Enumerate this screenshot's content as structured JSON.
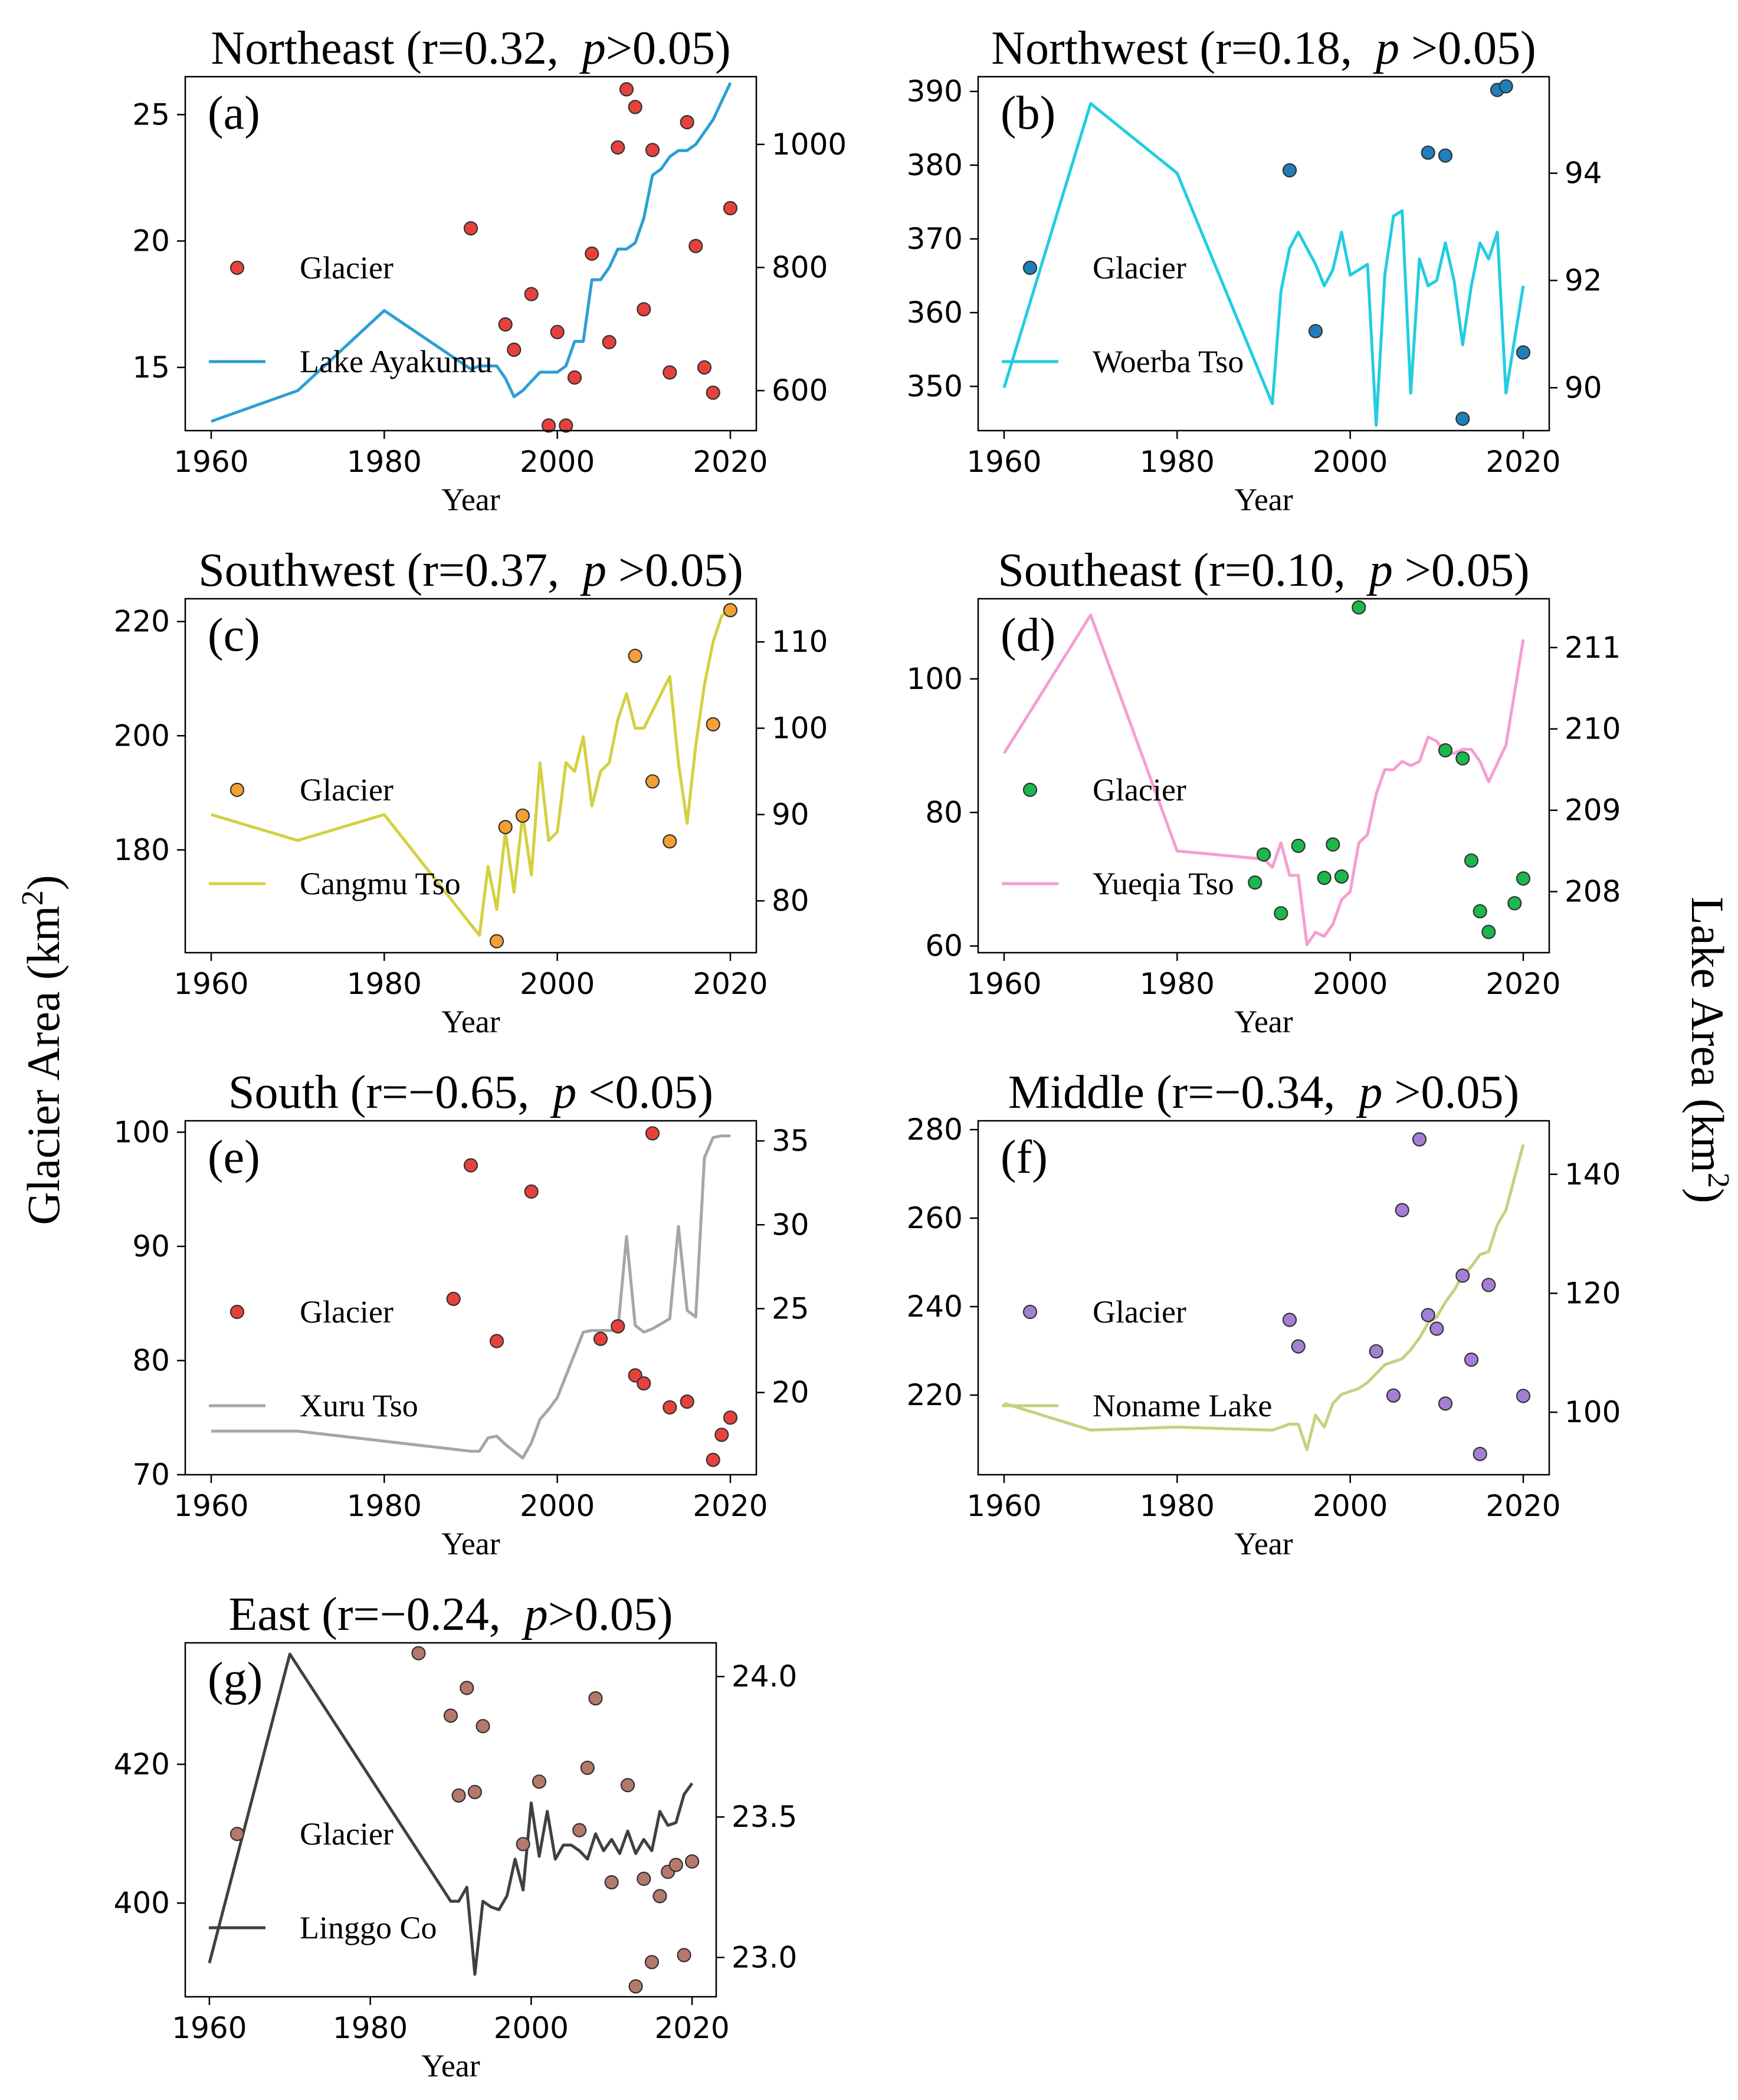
{
  "figure": {
    "left_axis_label": "Glacier Area (km²)",
    "right_axis_label": "Lake Area (km²)"
  },
  "chart_data": [
    {
      "type": "scatter+line",
      "panel_label": "(a)",
      "title": "Northeast (r=0.32, p>0.05)",
      "title_parts": {
        "prefix": "Northeast (r=0.32,  ",
        "p": "p",
        "suffix": ">0.05)"
      },
      "xlabel": "Year",
      "xlim": [
        1957,
        2023
      ],
      "xticks": [
        1960,
        1980,
        2000,
        2020
      ],
      "glacier": {
        "name": "Glacier",
        "color": "#e8413c",
        "ylim": [
          12.5,
          26.5
        ],
        "yticks": [
          15,
          20,
          25
        ],
        "x": [
          1990,
          1994,
          1995,
          1997,
          1999,
          2000,
          2001,
          2002,
          2004,
          2006,
          2007,
          2008,
          2009,
          2010,
          2011,
          2013,
          2015,
          2016,
          2017,
          2018,
          2020
        ],
        "y": [
          20.5,
          16.7,
          15.7,
          17.9,
          12.7,
          16.4,
          12.7,
          14.6,
          19.5,
          16.0,
          23.7,
          26.0,
          25.3,
          17.3,
          23.6,
          14.8,
          24.7,
          19.8,
          15.0,
          14.0,
          21.3
        ]
      },
      "lake": {
        "name": "Lake Ayakumu",
        "color": "#2b9fd4",
        "ylim": [
          535,
          1110
        ],
        "yticks": [
          600,
          800,
          1000
        ],
        "x": [
          1960,
          1970,
          1980,
          1990,
          1991,
          1993,
          1994,
          1995,
          1996,
          1998,
          1999,
          2000,
          2001,
          2002,
          2003,
          2004,
          2005,
          2006,
          2007,
          2008,
          2009,
          2010,
          2011,
          2012,
          2013,
          2014,
          2015,
          2016,
          2017,
          2018,
          2019,
          2020
        ],
        "y": [
          550,
          600,
          730,
          635,
          640,
          640,
          620,
          590,
          600,
          630,
          630,
          630,
          640,
          680,
          680,
          780,
          780,
          800,
          830,
          830,
          840,
          880,
          950,
          960,
          980,
          990,
          990,
          1000,
          1020,
          1040,
          1070,
          1100
        ]
      }
    },
    {
      "type": "scatter+line",
      "panel_label": "(b)",
      "title": "Northwest (r=0.18, p >0.05)",
      "title_parts": {
        "prefix": "Northwest (r=0.18,  ",
        "p": "p",
        "suffix": " >0.05)"
      },
      "xlabel": "Year",
      "xlim": [
        1957,
        2023
      ],
      "xticks": [
        1960,
        1980,
        2000,
        2020
      ],
      "glacier": {
        "name": "Glacier",
        "color": "#1f7fb8",
        "ylim": [
          344,
          392
        ],
        "yticks": [
          350,
          360,
          370,
          380,
          390
        ],
        "x": [
          1993,
          1996,
          2009,
          2011,
          2013,
          2017,
          2018,
          2020
        ],
        "y": [
          379.3,
          357.5,
          381.7,
          381.3,
          345.6,
          390.2,
          390.7,
          354.6
        ]
      },
      "lake": {
        "name": "Woerba Tso",
        "color": "#22cde0",
        "ylim": [
          89.2,
          95.8
        ],
        "yticks": [
          90,
          92,
          94
        ],
        "x": [
          1960,
          1970,
          1980,
          1991,
          1992,
          1993,
          1994,
          1995,
          1996,
          1997,
          1998,
          1999,
          2000,
          2001,
          2002,
          2003,
          2004,
          2005,
          2006,
          2007,
          2008,
          2009,
          2010,
          2011,
          2012,
          2013,
          2014,
          2015,
          2016,
          2017,
          2018,
          2019,
          2020
        ],
        "y": [
          90.0,
          95.3,
          94.0,
          89.7,
          91.8,
          92.6,
          92.9,
          92.6,
          92.3,
          91.9,
          92.2,
          92.9,
          92.1,
          92.2,
          92.3,
          89.3,
          92.1,
          93.2,
          93.3,
          89.9,
          92.4,
          91.9,
          92.0,
          92.7,
          92.0,
          90.8,
          91.9,
          92.7,
          92.4,
          92.9,
          89.9,
          90.9,
          91.9
        ]
      }
    },
    {
      "type": "scatter+line",
      "panel_label": "(c)",
      "title": "Southwest (r=0.37, p >0.05)",
      "title_parts": {
        "prefix": "Southwest (r=0.37,  ",
        "p": "p",
        "suffix": " >0.05)"
      },
      "xlabel": "Year",
      "xlim": [
        1957,
        2023
      ],
      "xticks": [
        1960,
        1980,
        2000,
        2020
      ],
      "glacier": {
        "name": "Glacier",
        "color": "#f5a033",
        "ylim": [
          162,
          224
        ],
        "yticks": [
          180,
          200,
          220
        ],
        "x": [
          1993,
          1994,
          1996,
          2009,
          2011,
          2013,
          2018,
          2020
        ],
        "y": [
          164.0,
          184.0,
          186.0,
          214.0,
          192.0,
          181.5,
          202.0,
          222.0
        ]
      },
      "lake": {
        "name": "Cangmu Tso",
        "color": "#d4d040",
        "ylim": [
          74,
          115
        ],
        "yticks": [
          80,
          90,
          100,
          110
        ],
        "x": [
          1960,
          1970,
          1980,
          1991,
          1992,
          1993,
          1994,
          1995,
          1996,
          1997,
          1998,
          1999,
          2000,
          2001,
          2002,
          2003,
          2004,
          2005,
          2006,
          2007,
          2008,
          2009,
          2010,
          2011,
          2012,
          2013,
          2014,
          2015,
          2016,
          2017,
          2018,
          2019,
          2020
        ],
        "y": [
          90,
          87,
          90,
          76,
          84,
          79,
          88,
          81,
          90,
          83,
          96,
          87,
          88,
          96,
          95,
          99,
          91,
          95,
          96,
          101,
          104,
          100,
          100,
          102,
          104,
          106,
          96,
          89,
          98,
          105,
          110,
          113,
          114
        ]
      }
    },
    {
      "type": "scatter+line",
      "panel_label": "(d)",
      "title": "Southeast (r=0.10, p >0.05)",
      "title_parts": {
        "prefix": "Southeast (r=0.10,  ",
        "p": "p",
        "suffix": " >0.05)"
      },
      "xlabel": "Year",
      "xlim": [
        1957,
        2023
      ],
      "xticks": [
        1960,
        1980,
        2000,
        2020
      ],
      "glacier": {
        "name": "Glacier",
        "color": "#1ab84d",
        "ylim": [
          59,
          112
        ],
        "yticks": [
          60,
          80,
          100
        ],
        "x": [
          1989,
          1990,
          1992,
          1994,
          1997,
          1998,
          1999,
          2001,
          2011,
          2013,
          2014,
          2015,
          2016,
          2019,
          2020
        ],
        "y": [
          69.5,
          73.7,
          64.9,
          75.0,
          70.2,
          75.2,
          70.4,
          110.7,
          89.3,
          88.1,
          72.8,
          65.2,
          62.1,
          66.4,
          70.1
        ]
      },
      "lake": {
        "name": "Yueqia Tso",
        "color": "#f59ed2",
        "ylim": [
          207.25,
          211.6
        ],
        "yticks": [
          208,
          209,
          210,
          211
        ],
        "x": [
          1960,
          1970,
          1980,
          1990,
          1991,
          1992,
          1993,
          1994,
          1995,
          1996,
          1997,
          1998,
          1999,
          2000,
          2001,
          2002,
          2003,
          2004,
          2005,
          2006,
          2007,
          2008,
          2009,
          2010,
          2011,
          2012,
          2013,
          2014,
          2015,
          2016,
          2018,
          2020
        ],
        "y": [
          209.7,
          211.4,
          208.5,
          208.4,
          208.3,
          208.6,
          208.2,
          208.2,
          207.35,
          207.5,
          207.45,
          207.6,
          207.9,
          208.0,
          208.6,
          208.7,
          209.2,
          209.5,
          209.5,
          209.6,
          209.55,
          209.6,
          209.9,
          209.85,
          209.7,
          209.7,
          209.75,
          209.75,
          209.6,
          209.35,
          209.8,
          211.1
        ]
      }
    },
    {
      "type": "scatter+line",
      "panel_label": "(e)",
      "title": "South (r=−0.65, p <0.05)",
      "title_parts": {
        "prefix": "South (r=−0.65,  ",
        "p": "p",
        "suffix": " <0.05)"
      },
      "xlabel": "Year",
      "xlim": [
        1957,
        2023
      ],
      "xticks": [
        1960,
        1980,
        2000,
        2020
      ],
      "glacier": {
        "name": "Glacier",
        "color": "#e8413c",
        "ylim": [
          70,
          101
        ],
        "yticks": [
          70,
          80,
          90,
          100
        ],
        "x": [
          1988,
          1990,
          1993,
          1997,
          2005,
          2007,
          2009,
          2010,
          2011,
          2013,
          2015,
          2018,
          2019,
          2020
        ],
        "y": [
          85.4,
          97.1,
          81.7,
          94.8,
          81.9,
          83.0,
          78.7,
          78.0,
          99.9,
          75.9,
          76.4,
          71.3,
          73.5,
          75.0
        ]
      },
      "lake": {
        "name": "Xuru Tso",
        "color": "#a6a6a6",
        "ylim": [
          15.1,
          36.2
        ],
        "yticks": [
          20,
          25,
          30,
          35
        ],
        "x": [
          1960,
          1970,
          1980,
          1990,
          1991,
          1992,
          1993,
          1994,
          1995,
          1996,
          1997,
          1998,
          1999,
          2000,
          2001,
          2002,
          2003,
          2004,
          2005,
          2006,
          2007,
          2008,
          2009,
          2010,
          2011,
          2012,
          2013,
          2014,
          2015,
          2016,
          2017,
          2018,
          2019,
          2020
        ],
        "y": [
          17.7,
          17.7,
          17.1,
          16.5,
          16.5,
          17.3,
          17.4,
          16.9,
          16.5,
          16.1,
          17.0,
          18.4,
          19.0,
          19.7,
          21.0,
          22.3,
          23.6,
          23.7,
          23.7,
          23.7,
          23.7,
          29.3,
          24.0,
          23.6,
          23.8,
          24.1,
          24.4,
          29.9,
          24.9,
          24.5,
          34.0,
          35.2,
          35.3,
          35.3
        ]
      }
    },
    {
      "type": "scatter+line",
      "panel_label": "(f)",
      "title": "Middle (r=−0.34, p >0.05)",
      "title_parts": {
        "prefix": "Middle (r=−0.34,  ",
        "p": "p",
        "suffix": " >0.05)"
      },
      "xlabel": "Year",
      "xlim": [
        1957,
        2023
      ],
      "xticks": [
        1960,
        1980,
        2000,
        2020
      ],
      "glacier": {
        "name": "Glacier",
        "color": "#a57fd6",
        "ylim": [
          202,
          282
        ],
        "yticks": [
          220,
          240,
          260,
          280
        ],
        "x": [
          1993,
          1994,
          2003,
          2005,
          2006,
          2008,
          2009,
          2010,
          2011,
          2013,
          2014,
          2015,
          2016,
          2020
        ],
        "y": [
          237.0,
          231.0,
          229.9,
          219.9,
          261.8,
          277.8,
          238.1,
          235.0,
          218.1,
          247.0,
          228.0,
          206.7,
          244.9,
          219.8
        ]
      },
      "lake": {
        "name": "Noname Lake",
        "color": "#c8cf80",
        "ylim": [
          89.5,
          149
        ],
        "yticks": [
          100,
          120,
          140
        ],
        "x": [
          1960,
          1970,
          1980,
          1991,
          1993,
          1994,
          1995,
          1996,
          1997,
          1998,
          1999,
          2000,
          2001,
          2002,
          2003,
          2004,
          2005,
          2006,
          2007,
          2008,
          2009,
          2010,
          2011,
          2012,
          2013,
          2014,
          2015,
          2016,
          2017,
          2018,
          2019,
          2020
        ],
        "y": [
          101.5,
          97.0,
          97.5,
          97.0,
          98.0,
          98.0,
          93.7,
          99.5,
          97.5,
          101.5,
          103.0,
          103.5,
          104.0,
          105.0,
          106.5,
          108.0,
          108.5,
          109.0,
          110.5,
          112.5,
          115.0,
          116.0,
          118.5,
          120.5,
          123.0,
          124.5,
          126.5,
          127.0,
          131.5,
          134.0,
          139.5,
          145.0
        ]
      }
    },
    {
      "type": "scatter+line",
      "panel_label": "(g)",
      "title": "East (r=−0.24, p>0.05)",
      "title_parts": {
        "prefix": "East (r=−0.24,  ",
        "p": "p",
        "suffix": ">0.05)"
      },
      "xlabel": "Year",
      "xlim": [
        1957,
        2023
      ],
      "xticks": [
        1960,
        1980,
        2000,
        2020
      ],
      "glacier": {
        "name": "Glacier",
        "color": "#b5786a",
        "ylim": [
          386.5,
          437.5
        ],
        "yticks": [
          400,
          420
        ],
        "x": [
          1986,
          1990,
          1991,
          1992,
          1993,
          1994,
          1999,
          2001,
          2006,
          2007,
          2008,
          2010,
          2012,
          2013,
          2014,
          2015,
          2016,
          2017,
          2018,
          2019,
          2020
        ],
        "y": [
          436.0,
          427.0,
          415.5,
          431.0,
          416.0,
          425.5,
          408.5,
          417.5,
          410.5,
          419.5,
          429.5,
          403.0,
          417.0,
          388.0,
          403.5,
          391.5,
          401.0,
          404.5,
          405.5,
          392.5,
          406.0
        ]
      },
      "lake": {
        "name": "Linggo Co",
        "color": "#404040",
        "ylim": [
          22.86,
          24.12
        ],
        "yticks": [
          23.0,
          23.5,
          24.0
        ],
        "x": [
          1960,
          1970,
          1980,
          1990,
          1991,
          1992,
          1993,
          1994,
          1995,
          1996,
          1997,
          1998,
          1999,
          2000,
          2001,
          2002,
          2003,
          2004,
          2005,
          2006,
          2007,
          2008,
          2009,
          2010,
          2011,
          2012,
          2013,
          2014,
          2015,
          2016,
          2017,
          2018,
          2019,
          2020
        ],
        "y": [
          22.98,
          24.08,
          23.64,
          23.2,
          23.2,
          23.25,
          22.94,
          23.2,
          23.18,
          23.17,
          23.22,
          23.35,
          23.24,
          23.55,
          23.36,
          23.52,
          23.35,
          23.4,
          23.4,
          23.38,
          23.35,
          23.44,
          23.38,
          23.42,
          23.37,
          23.45,
          23.37,
          23.42,
          23.38,
          23.52,
          23.47,
          23.48,
          23.58,
          23.62
        ]
      }
    }
  ]
}
